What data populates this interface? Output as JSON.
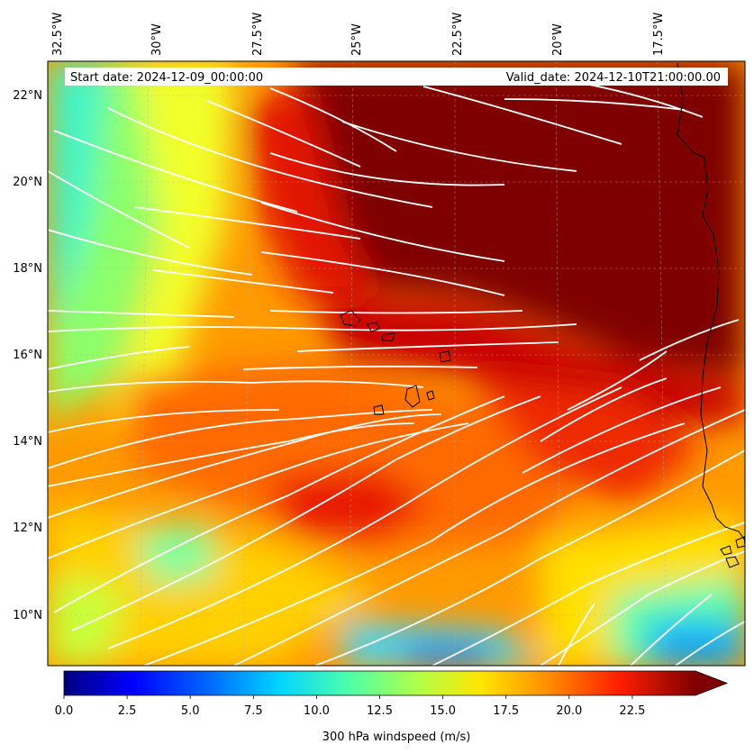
{
  "header": {
    "start_date": "Start date: 2024-12-09_00:00:00",
    "valid_date": "Valid_date: 2024-12-10T21:00:00.00"
  },
  "axes": {
    "lon_ticks": [
      "32.5°W",
      "30°W",
      "27.5°W",
      "25°W",
      "22.5°W",
      "20°W",
      "17.5°W"
    ],
    "lat_ticks": [
      "22°N",
      "20°N",
      "18°N",
      "16°N",
      "14°N",
      "12°N",
      "10°N"
    ]
  },
  "colorbar": {
    "label": "300 hPa windspeed (m/s)",
    "ticks": [
      "0.0",
      "2.5",
      "5.0",
      "7.5",
      "10.0",
      "12.5",
      "15.0",
      "17.5",
      "20.0",
      "22.5"
    ],
    "range": [
      0,
      25
    ],
    "extend": "max"
  },
  "colors": {
    "gridline": "#b0b0b0",
    "streamline": "#ffffff",
    "coastline": "#000000"
  }
}
